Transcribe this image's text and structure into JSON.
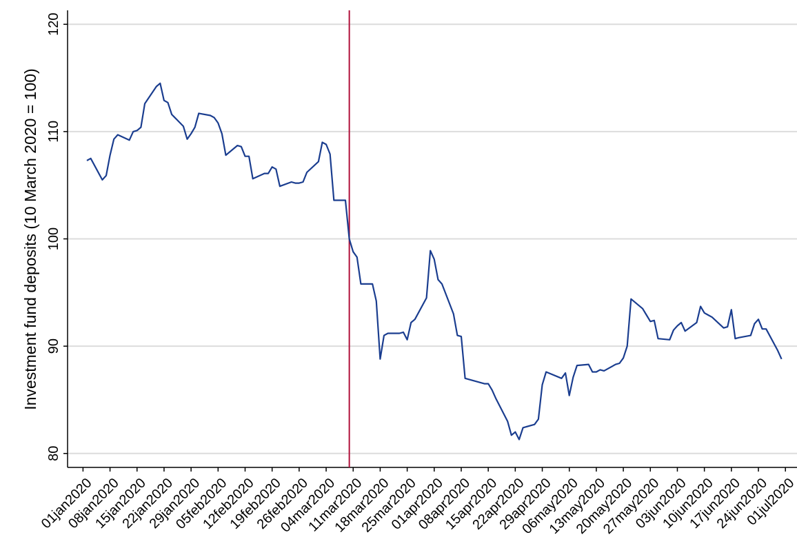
{
  "chart_data": {
    "type": "line",
    "y_label": "Investment fund deposits (10 March 2020 = 100)",
    "x": [
      "02jan2020",
      "03jan2020",
      "06jan2020",
      "07jan2020",
      "08jan2020",
      "09jan2020",
      "10jan2020",
      "13jan2020",
      "14jan2020",
      "15jan2020",
      "16jan2020",
      "17jan2020",
      "20jan2020",
      "21jan2020",
      "22jan2020",
      "23jan2020",
      "24jan2020",
      "27jan2020",
      "28jan2020",
      "29jan2020",
      "30jan2020",
      "31jan2020",
      "03feb2020",
      "04feb2020",
      "05feb2020",
      "06feb2020",
      "07feb2020",
      "10feb2020",
      "11feb2020",
      "12feb2020",
      "13feb2020",
      "14feb2020",
      "17feb2020",
      "18feb2020",
      "19feb2020",
      "20feb2020",
      "21feb2020",
      "24feb2020",
      "25feb2020",
      "26feb2020",
      "27feb2020",
      "28feb2020",
      "02mar2020",
      "03mar2020",
      "04mar2020",
      "05mar2020",
      "06mar2020",
      "09mar2020",
      "10mar2020",
      "11mar2020",
      "12mar2020",
      "13mar2020",
      "16mar2020",
      "17mar2020",
      "18mar2020",
      "19mar2020",
      "20mar2020",
      "23mar2020",
      "24mar2020",
      "25mar2020",
      "26mar2020",
      "27mar2020",
      "30mar2020",
      "31mar2020",
      "01apr2020",
      "02apr2020",
      "03apr2020",
      "06apr2020",
      "07apr2020",
      "08apr2020",
      "09apr2020",
      "14apr2020",
      "15apr2020",
      "16apr2020",
      "17apr2020",
      "20apr2020",
      "21apr2020",
      "22apr2020",
      "23apr2020",
      "24apr2020",
      "27apr2020",
      "28apr2020",
      "29apr2020",
      "30apr2020",
      "04may2020",
      "05may2020",
      "06may2020",
      "07may2020",
      "08may2020",
      "11may2020",
      "12may2020",
      "13may2020",
      "14may2020",
      "15may2020",
      "18may2020",
      "19may2020",
      "20may2020",
      "21may2020",
      "22may2020",
      "25may2020",
      "26may2020",
      "27may2020",
      "28may2020",
      "29may2020",
      "01jun2020",
      "02jun2020",
      "03jun2020",
      "04jun2020",
      "05jun2020",
      "08jun2020",
      "09jun2020",
      "10jun2020",
      "11jun2020",
      "12jun2020",
      "15jun2020",
      "16jun2020",
      "17jun2020",
      "18jun2020",
      "19jun2020",
      "22jun2020",
      "23jun2020",
      "24jun2020",
      "25jun2020",
      "26jun2020",
      "29jun2020",
      "30jun2020"
    ],
    "values": [
      107.3,
      107.5,
      105.5,
      105.9,
      107.8,
      109.3,
      109.7,
      109.2,
      110.0,
      110.1,
      110.4,
      112.6,
      114.2,
      114.5,
      112.9,
      112.7,
      111.6,
      110.5,
      109.3,
      109.8,
      110.4,
      111.7,
      111.5,
      111.3,
      110.8,
      109.8,
      107.8,
      108.7,
      108.6,
      107.7,
      107.7,
      105.6,
      106.1,
      106.1,
      106.7,
      106.5,
      104.9,
      105.3,
      105.2,
      105.2,
      105.3,
      106.2,
      107.2,
      109.0,
      108.8,
      107.9,
      103.6,
      103.6,
      100.0,
      98.8,
      98.3,
      95.8,
      95.8,
      94.2,
      88.8,
      91.0,
      91.2,
      91.2,
      91.3,
      90.6,
      92.2,
      92.5,
      94.5,
      98.9,
      98.1,
      96.2,
      95.8,
      93.0,
      91.0,
      90.9,
      87.0,
      86.5,
      86.5,
      85.9,
      85.1,
      83.0,
      81.7,
      82.0,
      81.3,
      82.4,
      82.7,
      83.2,
      86.4,
      87.6,
      87.0,
      87.5,
      85.4,
      87.1,
      88.2,
      88.3,
      87.6,
      87.6,
      87.8,
      87.7,
      88.3,
      88.4,
      88.9,
      90.0,
      94.4,
      93.5,
      92.9,
      92.3,
      92.4,
      90.7,
      90.6,
      91.5,
      91.9,
      92.2,
      91.4,
      92.2,
      93.7,
      93.1,
      92.9,
      92.7,
      91.7,
      91.8,
      93.4,
      90.7,
      90.8,
      91.0,
      92.1,
      92.5,
      91.6,
      91.6,
      89.6,
      88.8
    ],
    "color": "#1a3d8f",
    "vline": "10mar2020",
    "vline_color": "#b0103a",
    "xlim": [
      "28dec2019",
      "04jul2020"
    ],
    "xticks": [
      "01jan2020",
      "08jan2020",
      "15jan2020",
      "22jan2020",
      "29jan2020",
      "05feb2020",
      "12feb2020",
      "19feb2020",
      "26feb2020",
      "04mar2020",
      "11mar2020",
      "18mar2020",
      "25mar2020",
      "01apr2020",
      "08apr2020",
      "15apr2020",
      "22apr2020",
      "29apr2020",
      "06may2020",
      "13may2020",
      "20may2020",
      "27may2020",
      "03jun2020",
      "10jun2020",
      "17jun2020",
      "24jun2020",
      "01jul2020"
    ],
    "ylim": [
      78.7,
      121.3
    ],
    "yticks": [
      80,
      90,
      100,
      110,
      120
    ],
    "grid": true
  }
}
